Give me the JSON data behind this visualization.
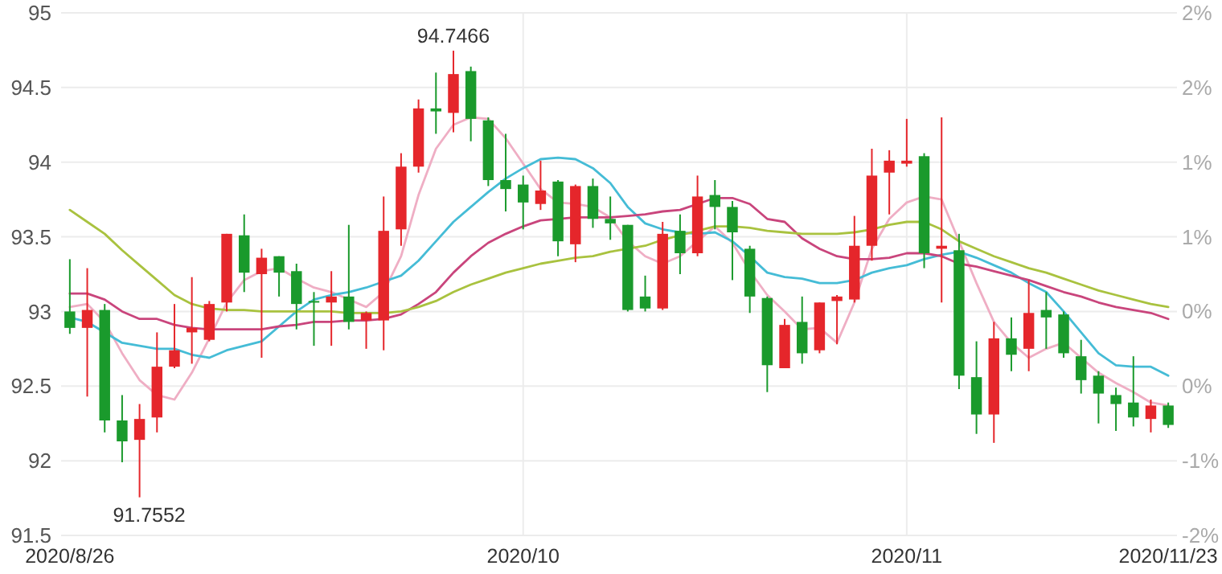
{
  "chart_data": {
    "type": "candlestick",
    "categories": [
      "2020/8/26",
      null,
      null,
      null,
      null,
      null,
      null,
      null,
      null,
      null,
      null,
      null,
      null,
      null,
      null,
      null,
      null,
      null,
      null,
      null,
      null,
      null,
      null,
      null,
      null,
      null,
      "2020/10",
      null,
      null,
      null,
      null,
      null,
      null,
      null,
      null,
      null,
      null,
      null,
      null,
      null,
      null,
      null,
      null,
      null,
      null,
      null,
      null,
      null,
      "2020/11",
      null,
      null,
      null,
      null,
      null,
      null,
      null,
      null,
      null,
      null,
      null,
      null,
      null,
      null,
      "2020/11/23"
    ],
    "ohlc": [
      [
        93.0,
        93.35,
        92.85,
        92.89
      ],
      [
        92.89,
        93.29,
        92.43,
        93.01
      ],
      [
        93.01,
        93.05,
        92.19,
        92.27
      ],
      [
        92.27,
        92.44,
        91.99,
        92.13
      ],
      [
        92.14,
        92.38,
        91.7552,
        92.28
      ],
      [
        92.29,
        92.86,
        92.19,
        92.63
      ],
      [
        92.63,
        93.05,
        92.62,
        92.74
      ],
      [
        92.86,
        93.23,
        92.65,
        92.89
      ],
      [
        92.81,
        93.07,
        92.8,
        93.05
      ],
      [
        93.06,
        93.52,
        93.0,
        93.52
      ],
      [
        93.51,
        93.65,
        93.13,
        93.26
      ],
      [
        93.25,
        93.42,
        92.69,
        93.36
      ],
      [
        93.37,
        93.37,
        93.1,
        93.26
      ],
      [
        93.27,
        93.32,
        92.88,
        93.05
      ],
      [
        93.07,
        93.13,
        92.77,
        93.06
      ],
      [
        93.06,
        93.27,
        92.77,
        93.1
      ],
      [
        93.1,
        93.58,
        92.88,
        92.93
      ],
      [
        92.94,
        93.0,
        92.75,
        92.99
      ],
      [
        92.94,
        93.77,
        92.74,
        93.54
      ],
      [
        93.55,
        94.06,
        93.44,
        93.97
      ],
      [
        93.97,
        94.42,
        93.93,
        94.36
      ],
      [
        94.36,
        94.6,
        94.19,
        94.34
      ],
      [
        94.33,
        94.7466,
        94.2,
        94.59
      ],
      [
        94.61,
        94.64,
        94.14,
        94.29
      ],
      [
        94.28,
        94.3,
        93.84,
        93.88
      ],
      [
        93.88,
        94.19,
        93.67,
        93.82
      ],
      [
        93.85,
        93.91,
        93.55,
        93.73
      ],
      [
        93.72,
        94.01,
        93.68,
        93.81
      ],
      [
        93.87,
        93.88,
        93.37,
        93.47
      ],
      [
        93.45,
        93.85,
        93.33,
        93.84
      ],
      [
        93.84,
        93.89,
        93.56,
        93.62
      ],
      [
        93.62,
        93.77,
        93.48,
        93.59
      ],
      [
        93.58,
        93.58,
        93.0,
        93.01
      ],
      [
        93.1,
        93.24,
        93.0,
        93.02
      ],
      [
        93.02,
        93.6,
        93.01,
        93.52
      ],
      [
        93.54,
        93.65,
        93.25,
        93.39
      ],
      [
        93.39,
        93.91,
        93.37,
        93.77
      ],
      [
        93.78,
        93.88,
        93.55,
        93.7
      ],
      [
        93.7,
        93.74,
        93.21,
        93.53
      ],
      [
        93.42,
        93.44,
        92.99,
        93.1
      ],
      [
        93.09,
        93.1,
        92.46,
        92.64
      ],
      [
        92.62,
        92.95,
        92.62,
        92.91
      ],
      [
        92.93,
        93.1,
        92.65,
        92.72
      ],
      [
        92.74,
        93.06,
        92.72,
        93.06
      ],
      [
        93.07,
        93.11,
        92.78,
        93.1
      ],
      [
        93.08,
        93.64,
        93.06,
        93.44
      ],
      [
        93.44,
        94.09,
        93.34,
        93.91
      ],
      [
        93.93,
        94.08,
        93.65,
        94.01
      ],
      [
        93.99,
        94.29,
        93.97,
        94.01
      ],
      [
        94.04,
        94.06,
        93.29,
        93.39
      ],
      [
        93.42,
        94.3,
        93.06,
        93.44
      ],
      [
        93.41,
        93.52,
        92.48,
        92.57
      ],
      [
        92.56,
        92.8,
        92.18,
        92.31
      ],
      [
        92.31,
        92.93,
        92.12,
        92.82
      ],
      [
        92.82,
        92.96,
        92.6,
        92.71
      ],
      [
        92.75,
        93.21,
        92.6,
        92.99
      ],
      [
        93.01,
        93.13,
        92.75,
        92.96
      ],
      [
        92.98,
        93.0,
        92.69,
        92.72
      ],
      [
        92.7,
        92.81,
        92.45,
        92.54
      ],
      [
        92.57,
        92.6,
        92.25,
        92.45
      ],
      [
        92.44,
        92.49,
        92.2,
        92.38
      ],
      [
        92.39,
        92.7,
        92.23,
        92.29
      ],
      [
        92.28,
        92.41,
        92.19,
        92.37
      ],
      [
        92.37,
        92.39,
        92.22,
        92.24
      ]
    ],
    "colors": [
      "#1a9a2c",
      "#e5262b",
      "#1a9a2c",
      "#1a9a2c",
      "#e5262b",
      "#e5262b",
      "#e5262b",
      "#e5262b",
      "#e5262b",
      "#e5262b",
      "#1a9a2c",
      "#e5262b",
      "#1a9a2c",
      "#1a9a2c",
      "#1a9a2c",
      "#e5262b",
      "#1a9a2c",
      "#e5262b",
      "#e5262b",
      "#e5262b",
      "#e5262b",
      "#1a9a2c",
      "#e5262b",
      "#1a9a2c",
      "#1a9a2c",
      "#1a9a2c",
      "#1a9a2c",
      "#e5262b",
      "#1a9a2c",
      "#e5262b",
      "#1a9a2c",
      "#1a9a2c",
      "#1a9a2c",
      "#1a9a2c",
      "#e5262b",
      "#1a9a2c",
      "#e5262b",
      "#1a9a2c",
      "#1a9a2c",
      "#1a9a2c",
      "#1a9a2c",
      "#e5262b",
      "#1a9a2c",
      "#e5262b",
      "#e5262b",
      "#e5262b",
      "#e5262b",
      "#e5262b",
      "#e5262b",
      "#1a9a2c",
      "#e5262b",
      "#1a9a2c",
      "#1a9a2c",
      "#e5262b",
      "#1a9a2c",
      "#e5262b",
      "#1a9a2c",
      "#1a9a2c",
      "#1a9a2c",
      "#1a9a2c",
      "#1a9a2c",
      "#1a9a2c",
      "#e5262b",
      "#1a9a2c"
    ],
    "series": [
      {
        "type": "line",
        "color": "#efaec4",
        "values": [
          93.03,
          93.05,
          92.93,
          92.72,
          92.54,
          92.44,
          92.41,
          92.59,
          92.82,
          93.06,
          93.21,
          93.27,
          93.29,
          93.22,
          93.16,
          93.13,
          93.08,
          93.03,
          93.13,
          93.37,
          93.78,
          94.09,
          94.25,
          94.3,
          94.29,
          94.16,
          93.99,
          93.82,
          93.73,
          93.72,
          93.7,
          93.63,
          93.47,
          93.37,
          93.32,
          93.37,
          93.47,
          93.57,
          93.46,
          93.27,
          93.11,
          93.0,
          92.88,
          92.89,
          92.79,
          93.06,
          93.42,
          93.62,
          93.73,
          93.77,
          93.75,
          93.47,
          93.19,
          92.93,
          92.79,
          92.69,
          92.75,
          92.79,
          92.69,
          92.59,
          92.52,
          92.46,
          92.39,
          92.37
        ]
      },
      {
        "type": "line",
        "color": "#45bcd6",
        "values": [
          92.96,
          92.93,
          92.86,
          92.79,
          92.77,
          92.75,
          92.75,
          92.71,
          92.69,
          92.74,
          92.77,
          92.8,
          92.9,
          93.0,
          93.08,
          93.11,
          93.13,
          93.16,
          93.2,
          93.24,
          93.34,
          93.47,
          93.6,
          93.7,
          93.8,
          93.89,
          93.96,
          94.02,
          94.03,
          94.02,
          93.96,
          93.86,
          93.7,
          93.59,
          93.55,
          93.53,
          93.52,
          93.53,
          93.47,
          93.37,
          93.26,
          93.23,
          93.22,
          93.19,
          93.19,
          93.21,
          93.26,
          93.29,
          93.31,
          93.35,
          93.38,
          93.4,
          93.36,
          93.31,
          93.26,
          93.19,
          93.13,
          93.0,
          92.86,
          92.72,
          92.64,
          92.63,
          92.63,
          92.57
        ]
      },
      {
        "type": "line",
        "color": "#c9457c",
        "values": [
          93.12,
          93.12,
          93.08,
          93.0,
          92.95,
          92.95,
          92.91,
          92.89,
          92.88,
          92.88,
          92.88,
          92.88,
          92.9,
          92.91,
          92.93,
          92.93,
          92.94,
          92.94,
          92.95,
          92.98,
          93.05,
          93.13,
          93.26,
          93.37,
          93.46,
          93.52,
          93.57,
          93.61,
          93.62,
          93.63,
          93.63,
          93.63,
          93.64,
          93.65,
          93.67,
          93.68,
          93.72,
          93.76,
          93.76,
          93.72,
          93.62,
          93.6,
          93.49,
          93.42,
          93.37,
          93.35,
          93.35,
          93.36,
          93.39,
          93.39,
          93.37,
          93.32,
          93.3,
          93.27,
          93.24,
          93.21,
          93.17,
          93.13,
          93.1,
          93.06,
          93.03,
          93.01,
          92.99,
          92.95
        ]
      },
      {
        "type": "line",
        "color": "#a9c23f",
        "values": [
          93.68,
          93.6,
          93.52,
          93.41,
          93.31,
          93.21,
          93.11,
          93.05,
          93.02,
          93.01,
          93.01,
          93.0,
          93.0,
          93.0,
          93.0,
          93.0,
          92.99,
          92.99,
          92.99,
          93.0,
          93.03,
          93.07,
          93.13,
          93.18,
          93.22,
          93.26,
          93.29,
          93.32,
          93.34,
          93.36,
          93.37,
          93.4,
          93.42,
          93.44,
          93.48,
          93.51,
          93.54,
          93.57,
          93.57,
          93.56,
          93.54,
          93.53,
          93.52,
          93.52,
          93.52,
          93.53,
          93.55,
          93.58,
          93.6,
          93.6,
          93.55,
          93.47,
          93.42,
          93.37,
          93.33,
          93.29,
          93.26,
          93.22,
          93.18,
          93.14,
          93.11,
          93.08,
          93.05,
          93.03
        ]
      }
    ],
    "ylim": [
      91.5,
      95
    ],
    "yticks": [
      91.5,
      92,
      92.5,
      93,
      93.5,
      94,
      94.5,
      95
    ],
    "y2lim": [
      -1.54,
      2.23
    ],
    "y2ticks": [
      {
        "value": -1.54,
        "label": "-2%"
      },
      {
        "value": -1.0,
        "label": "-1%"
      },
      {
        "value": -0.46,
        "label": "0%"
      },
      {
        "value": 0.08,
        "label": "0%"
      },
      {
        "value": 0.61,
        "label": "1%"
      },
      {
        "value": 1.15,
        "label": "1%"
      },
      {
        "value": 1.69,
        "label": "2%"
      },
      {
        "value": 2.23,
        "label": "2%"
      }
    ],
    "grid": true,
    "annotations": [
      "94.7466",
      "91.7552"
    ]
  }
}
